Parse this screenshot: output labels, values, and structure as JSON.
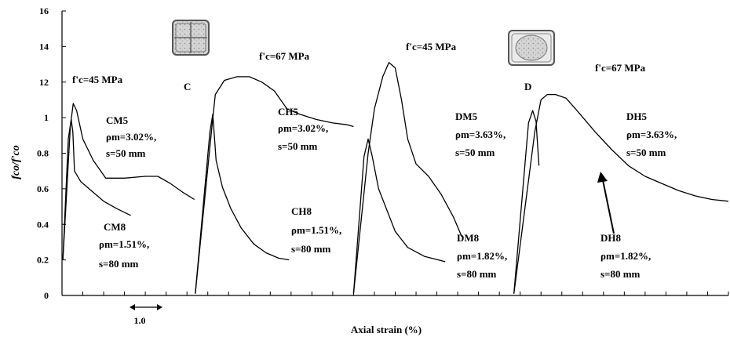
{
  "chart_data": {
    "type": "line",
    "title": "",
    "xlabel": "Axial strain (%)",
    "ylabel": "fco/f'co",
    "ylim": [
      0,
      16
    ],
    "yticks": [
      "0",
      "0.2",
      "0.4",
      "0.6",
      "0.8",
      "1",
      "12",
      "14",
      "16"
    ],
    "ytick_values": [
      0,
      2,
      4,
      6,
      8,
      10,
      12,
      14,
      16
    ],
    "scale_bar_label": "1.0",
    "grid": false,
    "legend": "none",
    "annotations": {
      "fc_c1": "f'c=45 MPa",
      "fc_c2": "f'c=67 MPa",
      "fc_d1": "f'c=45 MPa",
      "fc_d2": "f'c=67 MPa",
      "group_c": "C",
      "group_d": "D",
      "cm5": [
        "CM5",
        "ρm=3.02%,",
        "s=50 mm"
      ],
      "cm8": [
        "CM8",
        "ρm=1.51%,",
        "s=80 mm"
      ],
      "ch5": [
        "CH5",
        "ρm=3.02%,",
        "s=50 mm"
      ],
      "ch8": [
        "CH8",
        "ρm=1.51%,",
        "s=80 mm"
      ],
      "dm5": [
        "DM5",
        "ρm=3.63%,",
        "s=50 mm"
      ],
      "dm8": [
        "DM8",
        "ρm=1.82%,",
        "s=80 mm"
      ],
      "dh5": [
        "DH5",
        "ρm=3.63%,",
        "s=50 mm"
      ],
      "dh8": [
        "DH8",
        "ρm=1.82%,",
        "s=80 mm"
      ]
    },
    "series": [
      {
        "name": "CM5",
        "x": [
          0.02,
          0.2,
          0.27,
          0.35,
          0.5,
          0.75,
          1.05,
          1.5,
          2.0,
          2.3,
          2.6,
          2.9,
          3.18
        ],
        "y": [
          2.0,
          9.5,
          10.8,
          10.4,
          8.8,
          7.6,
          6.6,
          6.6,
          6.7,
          6.7,
          6.3,
          5.8,
          5.4
        ]
      },
      {
        "name": "CM8",
        "x": [
          0.02,
          0.15,
          0.22,
          0.26,
          0.3,
          0.45,
          0.7,
          1.0,
          1.3,
          1.65
        ],
        "y": [
          2.0,
          8.8,
          9.9,
          9.2,
          7.0,
          6.4,
          5.9,
          5.3,
          4.9,
          4.5
        ]
      },
      {
        "name": "CH5",
        "x": [
          3.2,
          3.6,
          3.68,
          3.9,
          4.2,
          4.5,
          4.8,
          5.1,
          5.4,
          5.7,
          6.1,
          6.5,
          6.85,
          7.0
        ],
        "y": [
          0.1,
          9.5,
          11.3,
          12.1,
          12.3,
          12.3,
          12.0,
          11.5,
          10.5,
          10.2,
          9.9,
          9.7,
          9.6,
          9.5
        ]
      },
      {
        "name": "CH8",
        "x": [
          3.2,
          3.55,
          3.62,
          3.7,
          3.85,
          4.05,
          4.3,
          4.6,
          4.9,
          5.2,
          5.45
        ],
        "y": [
          0.1,
          9.2,
          10.2,
          7.6,
          6.1,
          4.9,
          3.8,
          2.9,
          2.4,
          2.1,
          2.0
        ]
      },
      {
        "name": "DM5",
        "x": [
          7.0,
          7.35,
          7.5,
          7.7,
          7.85,
          8.0,
          8.15,
          8.3,
          8.5,
          8.8,
          9.1,
          9.4,
          9.6
        ],
        "y": [
          0.1,
          8.0,
          10.5,
          12.3,
          13.1,
          12.8,
          11.0,
          8.8,
          7.4,
          6.7,
          5.7,
          4.4,
          3.3
        ]
      },
      {
        "name": "DM8",
        "x": [
          7.0,
          7.25,
          7.35,
          7.45,
          7.6,
          7.8,
          8.0,
          8.3,
          8.7,
          9.2
        ],
        "y": [
          0.1,
          7.8,
          8.8,
          7.8,
          6.0,
          4.8,
          3.6,
          2.7,
          2.2,
          1.9
        ]
      },
      {
        "name": "DH5",
        "x": [
          10.85,
          11.35,
          11.5,
          11.65,
          11.85,
          12.1,
          12.4,
          12.8,
          13.2,
          13.6,
          14.0,
          14.4,
          14.8,
          15.2,
          15.6,
          16.0
        ],
        "y": [
          0.1,
          9.2,
          11.0,
          11.3,
          11.3,
          11.1,
          10.3,
          9.2,
          8.2,
          7.3,
          6.7,
          6.3,
          5.9,
          5.6,
          5.4,
          5.3
        ]
      },
      {
        "name": "DH8",
        "x": [
          10.85,
          11.2,
          11.3,
          11.38,
          11.45
        ],
        "y": [
          0.1,
          9.7,
          10.4,
          9.8,
          7.3
        ]
      }
    ]
  }
}
